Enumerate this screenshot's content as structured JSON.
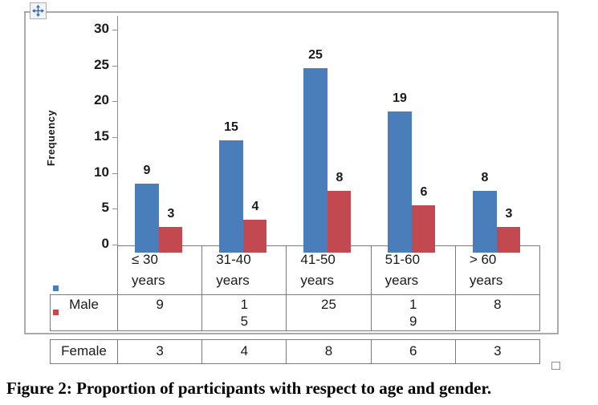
{
  "icons": {
    "move_handle": "four-direction-move",
    "table_resize_handle": "corner-resize"
  },
  "colors": {
    "male_bar": "#4A7EBB",
    "female_bar": "#C2494F",
    "axis": "#8F8F8F",
    "table_border": "#7A7A7A",
    "chart_border": "#A9A9A9",
    "handle_arrow": "#2D6CB5"
  },
  "chart_data": {
    "type": "bar",
    "title": "",
    "xlabel": "",
    "ylabel": "Frequency",
    "categories": [
      "≤ 30 years",
      "31-40 years",
      "41-50 years",
      "51-60 years",
      "> 60 years"
    ],
    "series": [
      {
        "name": "Male",
        "color": "#4A7EBB",
        "values": [
          9,
          15,
          25,
          19,
          8
        ]
      },
      {
        "name": "Female",
        "color": "#C2494F",
        "values": [
          3,
          4,
          8,
          6,
          3
        ]
      }
    ],
    "y_ticks": [
      0,
      5,
      10,
      15,
      20,
      25,
      30
    ],
    "ylim": [
      0,
      30
    ],
    "grid": false,
    "data_labels": true,
    "legend_position": "data-table-left-keys"
  },
  "table": {
    "header_cells": [
      "≤ 30\nyears",
      "31-40\nyears",
      "41-50\nyears",
      "51-60\nyears",
      "> 60\nyears"
    ],
    "rows": [
      {
        "label": "Male",
        "cells": [
          "9",
          "1\n5",
          "25",
          "1\n9",
          "8"
        ]
      },
      {
        "label": "Female",
        "cells": [
          "3",
          "4",
          "8",
          "6",
          "3"
        ]
      }
    ]
  },
  "caption": "Figure 2: Proportion of participants with respect to age and gender."
}
